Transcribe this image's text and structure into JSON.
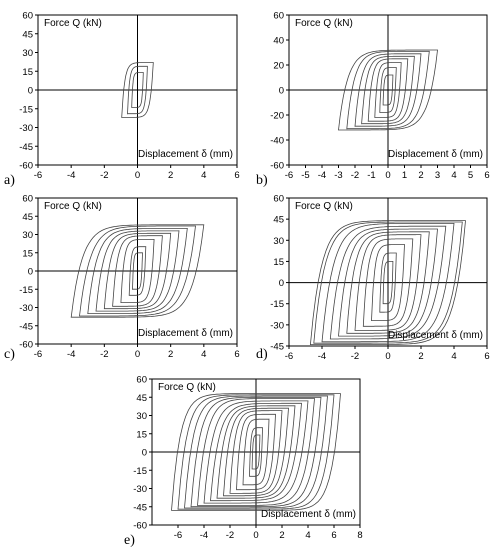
{
  "figure": {
    "x_label": "Displacement  δ (mm)",
    "y_label": "Force Q (kN)"
  },
  "chart_data": [
    {
      "type": "line",
      "panel_label": "a)",
      "xlim": [
        -6,
        6
      ],
      "ylim": [
        -60,
        60
      ],
      "xticks": [
        -6,
        -4,
        -2,
        0,
        2,
        4,
        6
      ],
      "yticks": [
        60,
        45,
        30,
        15,
        0,
        -15,
        -30,
        -45,
        -60
      ],
      "xlabel": "Displacement  δ (mm)",
      "ylabel": "Force Q (kN)",
      "grid": false,
      "series": [
        {
          "amplitude": 0.35,
          "peak_force": 14
        },
        {
          "amplitude": 0.6,
          "peak_force": 19
        },
        {
          "amplitude": 0.95,
          "peak_force": 22
        }
      ]
    },
    {
      "type": "line",
      "panel_label": "b)",
      "xlim": [
        -6,
        6
      ],
      "ylim": [
        -60,
        60
      ],
      "xticks": [
        -6,
        -5,
        -4,
        -3,
        -2,
        -1,
        0,
        1,
        2,
        3,
        4,
        5,
        6
      ],
      "yticks": [
        60,
        40,
        20,
        0,
        -20,
        -40,
        -60
      ],
      "xlabel": "Displacement  δ (mm)",
      "ylabel": "Force Q (kN)",
      "grid": false,
      "series": [
        {
          "amplitude": 0.3,
          "peak_force": 12
        },
        {
          "amplitude": 0.5,
          "peak_force": 18
        },
        {
          "amplitude": 0.8,
          "peak_force": 22
        },
        {
          "amplitude": 1.2,
          "peak_force": 25
        },
        {
          "amplitude": 1.6,
          "peak_force": 27
        },
        {
          "amplitude": 2.0,
          "peak_force": 29
        },
        {
          "amplitude": 2.5,
          "peak_force": 31
        },
        {
          "amplitude": 3.0,
          "peak_force": 32
        }
      ]
    },
    {
      "type": "line",
      "panel_label": "c)",
      "xlim": [
        -6,
        6
      ],
      "ylim": [
        -60,
        60
      ],
      "xticks": [
        -6,
        -4,
        -2,
        0,
        2,
        4,
        6
      ],
      "yticks": [
        60,
        45,
        30,
        15,
        0,
        -15,
        -30,
        -45,
        -60
      ],
      "xlabel": "Displacement  δ (mm)",
      "ylabel": "Force Q (kN)",
      "grid": false,
      "series": [
        {
          "amplitude": 0.3,
          "peak_force": 15
        },
        {
          "amplitude": 0.5,
          "peak_force": 20
        },
        {
          "amplitude": 1.0,
          "peak_force": 26
        },
        {
          "amplitude": 1.5,
          "peak_force": 29
        },
        {
          "amplitude": 2.0,
          "peak_force": 31
        },
        {
          "amplitude": 2.5,
          "peak_force": 33
        },
        {
          "amplitude": 3.0,
          "peak_force": 35
        },
        {
          "amplitude": 3.5,
          "peak_force": 37
        },
        {
          "amplitude": 4.0,
          "peak_force": 38
        }
      ]
    },
    {
      "type": "line",
      "panel_label": "d)",
      "xlim": [
        -6,
        6
      ],
      "ylim": [
        -45,
        60
      ],
      "xticks": [
        -6,
        -4,
        -2,
        0,
        2,
        4,
        6
      ],
      "yticks": [
        60,
        45,
        30,
        15,
        0,
        -15,
        -30,
        -45
      ],
      "xlabel": "Displacement  δ (mm)",
      "ylabel": "Force Q (kN)",
      "grid": false,
      "series": [
        {
          "amplitude": 0.3,
          "peak_force": 15
        },
        {
          "amplitude": 0.5,
          "peak_force": 21
        },
        {
          "amplitude": 1.0,
          "peak_force": 27
        },
        {
          "amplitude": 1.5,
          "peak_force": 31
        },
        {
          "amplitude": 2.0,
          "peak_force": 34
        },
        {
          "amplitude": 2.5,
          "peak_force": 36
        },
        {
          "amplitude": 3.0,
          "peak_force": 38
        },
        {
          "amplitude": 3.5,
          "peak_force": 40
        },
        {
          "amplitude": 4.0,
          "peak_force": 42
        },
        {
          "amplitude": 4.5,
          "peak_force": 43
        },
        {
          "amplitude": 4.7,
          "peak_force": 44
        }
      ]
    },
    {
      "type": "line",
      "panel_label": "e)",
      "xlim": [
        -8,
        8
      ],
      "ylim": [
        -60,
        60
      ],
      "xticks": [
        -6,
        -4,
        -2,
        0,
        2,
        4,
        6,
        8
      ],
      "yticks": [
        60,
        45,
        30,
        15,
        0,
        -15,
        -30,
        -45,
        -60
      ],
      "xlabel": "Displacement  δ (mm)",
      "ylabel": "Force Q (kN)",
      "grid": false,
      "series": [
        {
          "amplitude": 0.3,
          "peak_force": 14
        },
        {
          "amplitude": 0.5,
          "peak_force": 20
        },
        {
          "amplitude": 1.0,
          "peak_force": 27
        },
        {
          "amplitude": 1.5,
          "peak_force": 31
        },
        {
          "amplitude": 2.0,
          "peak_force": 34
        },
        {
          "amplitude": 2.5,
          "peak_force": 36
        },
        {
          "amplitude": 3.0,
          "peak_force": 38
        },
        {
          "amplitude": 3.5,
          "peak_force": 40
        },
        {
          "amplitude": 4.0,
          "peak_force": 42
        },
        {
          "amplitude": 4.5,
          "peak_force": 44
        },
        {
          "amplitude": 5.0,
          "peak_force": 45
        },
        {
          "amplitude": 5.5,
          "peak_force": 46
        },
        {
          "amplitude": 6.0,
          "peak_force": 47
        },
        {
          "amplitude": 6.5,
          "peak_force": 48
        }
      ]
    }
  ]
}
